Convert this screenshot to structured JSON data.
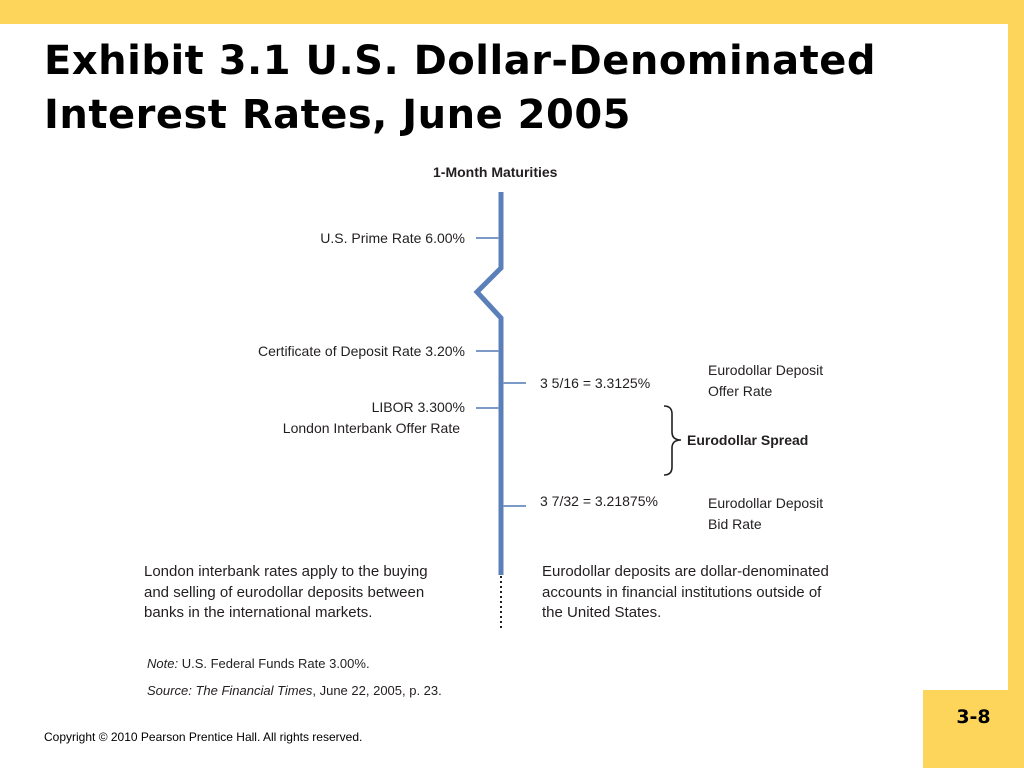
{
  "slide": {
    "title_line1": "Exhibit 3.1  U.S. Dollar-Denominated",
    "title_line2": "Interest Rates, June 2005",
    "page_number": "3-8",
    "copyright": "Copyright © 2010 Pearson Prentice Hall. All rights reserved."
  },
  "diagram": {
    "heading": "1-Month Maturities",
    "left_rates": [
      {
        "label": "U.S. Prime Rate 6.00%"
      },
      {
        "label": "Certificate of Deposit Rate 3.20%"
      },
      {
        "label": "LIBOR 3.300%",
        "label2": "London Interbank Offer Rate"
      }
    ],
    "right_rates": [
      {
        "value": "3  5/16  = 3.3125%",
        "name_line1": "Eurodollar Deposit",
        "name_line2": "Offer Rate"
      },
      {
        "value": "3  7/32  = 3.21875%",
        "name_line1": "Eurodollar Deposit",
        "name_line2": "Bid Rate"
      }
    ],
    "spread_label": "Eurodollar Spread",
    "left_note_lines": [
      "London interbank rates apply to the buying",
      "and selling of eurodollar deposits between",
      "banks in the international markets."
    ],
    "right_note_lines": [
      "Eurodollar deposits are dollar-denominated",
      "accounts in financial institutions outside of",
      "the United States."
    ],
    "note_label": "Note:",
    "note_text": " U.S. Federal Funds Rate 3.00%.",
    "source_label": "Source:",
    "source_publication": "The Financial Times",
    "source_rest": ", June 22, 2005, p. 23."
  },
  "colors": {
    "frame": "#fdd55a",
    "axis": "#5b80b9",
    "tick": "#7b9ac8",
    "text": "#231f20"
  }
}
